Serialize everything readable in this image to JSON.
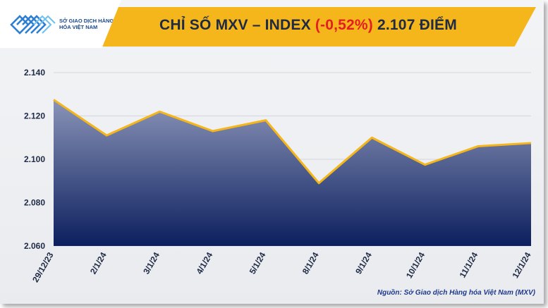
{
  "brand": {
    "logo_text": "SỞ GIAO DỊCH HÀNG HÓA VIỆT NAM"
  },
  "header": {
    "title_prefix": "CHỈ SỐ MXV – INDEX ",
    "change": "(-0,52%)",
    "title_suffix": " 2.107 ĐIỂM",
    "accent_color": "#f4b61a",
    "change_color": "#e31e24"
  },
  "chart_data": {
    "type": "area",
    "categories": [
      "29/12/23",
      "2/1/24",
      "3/1/24",
      "4/1/24",
      "5/1/24",
      "8/1/24",
      "9/1/24",
      "10/1/24",
      "11/1/24",
      "12/1/24"
    ],
    "values": [
      2127.5,
      2111,
      2122,
      2113,
      2118,
      2089,
      2110,
      2097.5,
      2106,
      2107.5
    ],
    "ylim": [
      2060,
      2140
    ],
    "yticks": [
      2060,
      2080,
      2100,
      2120,
      2140
    ],
    "ytick_labels": [
      "2.060",
      "2.080",
      "2.100",
      "2.120",
      "2.140"
    ],
    "grid": true,
    "line_color": "#f4b61a",
    "fill_top_color": "#8a94b8",
    "fill_bottom_color": "#0c1f5e"
  },
  "footer": {
    "source": "Nguồn: Sở Giao dịch Hàng hóa Việt Nam (MXV)"
  }
}
